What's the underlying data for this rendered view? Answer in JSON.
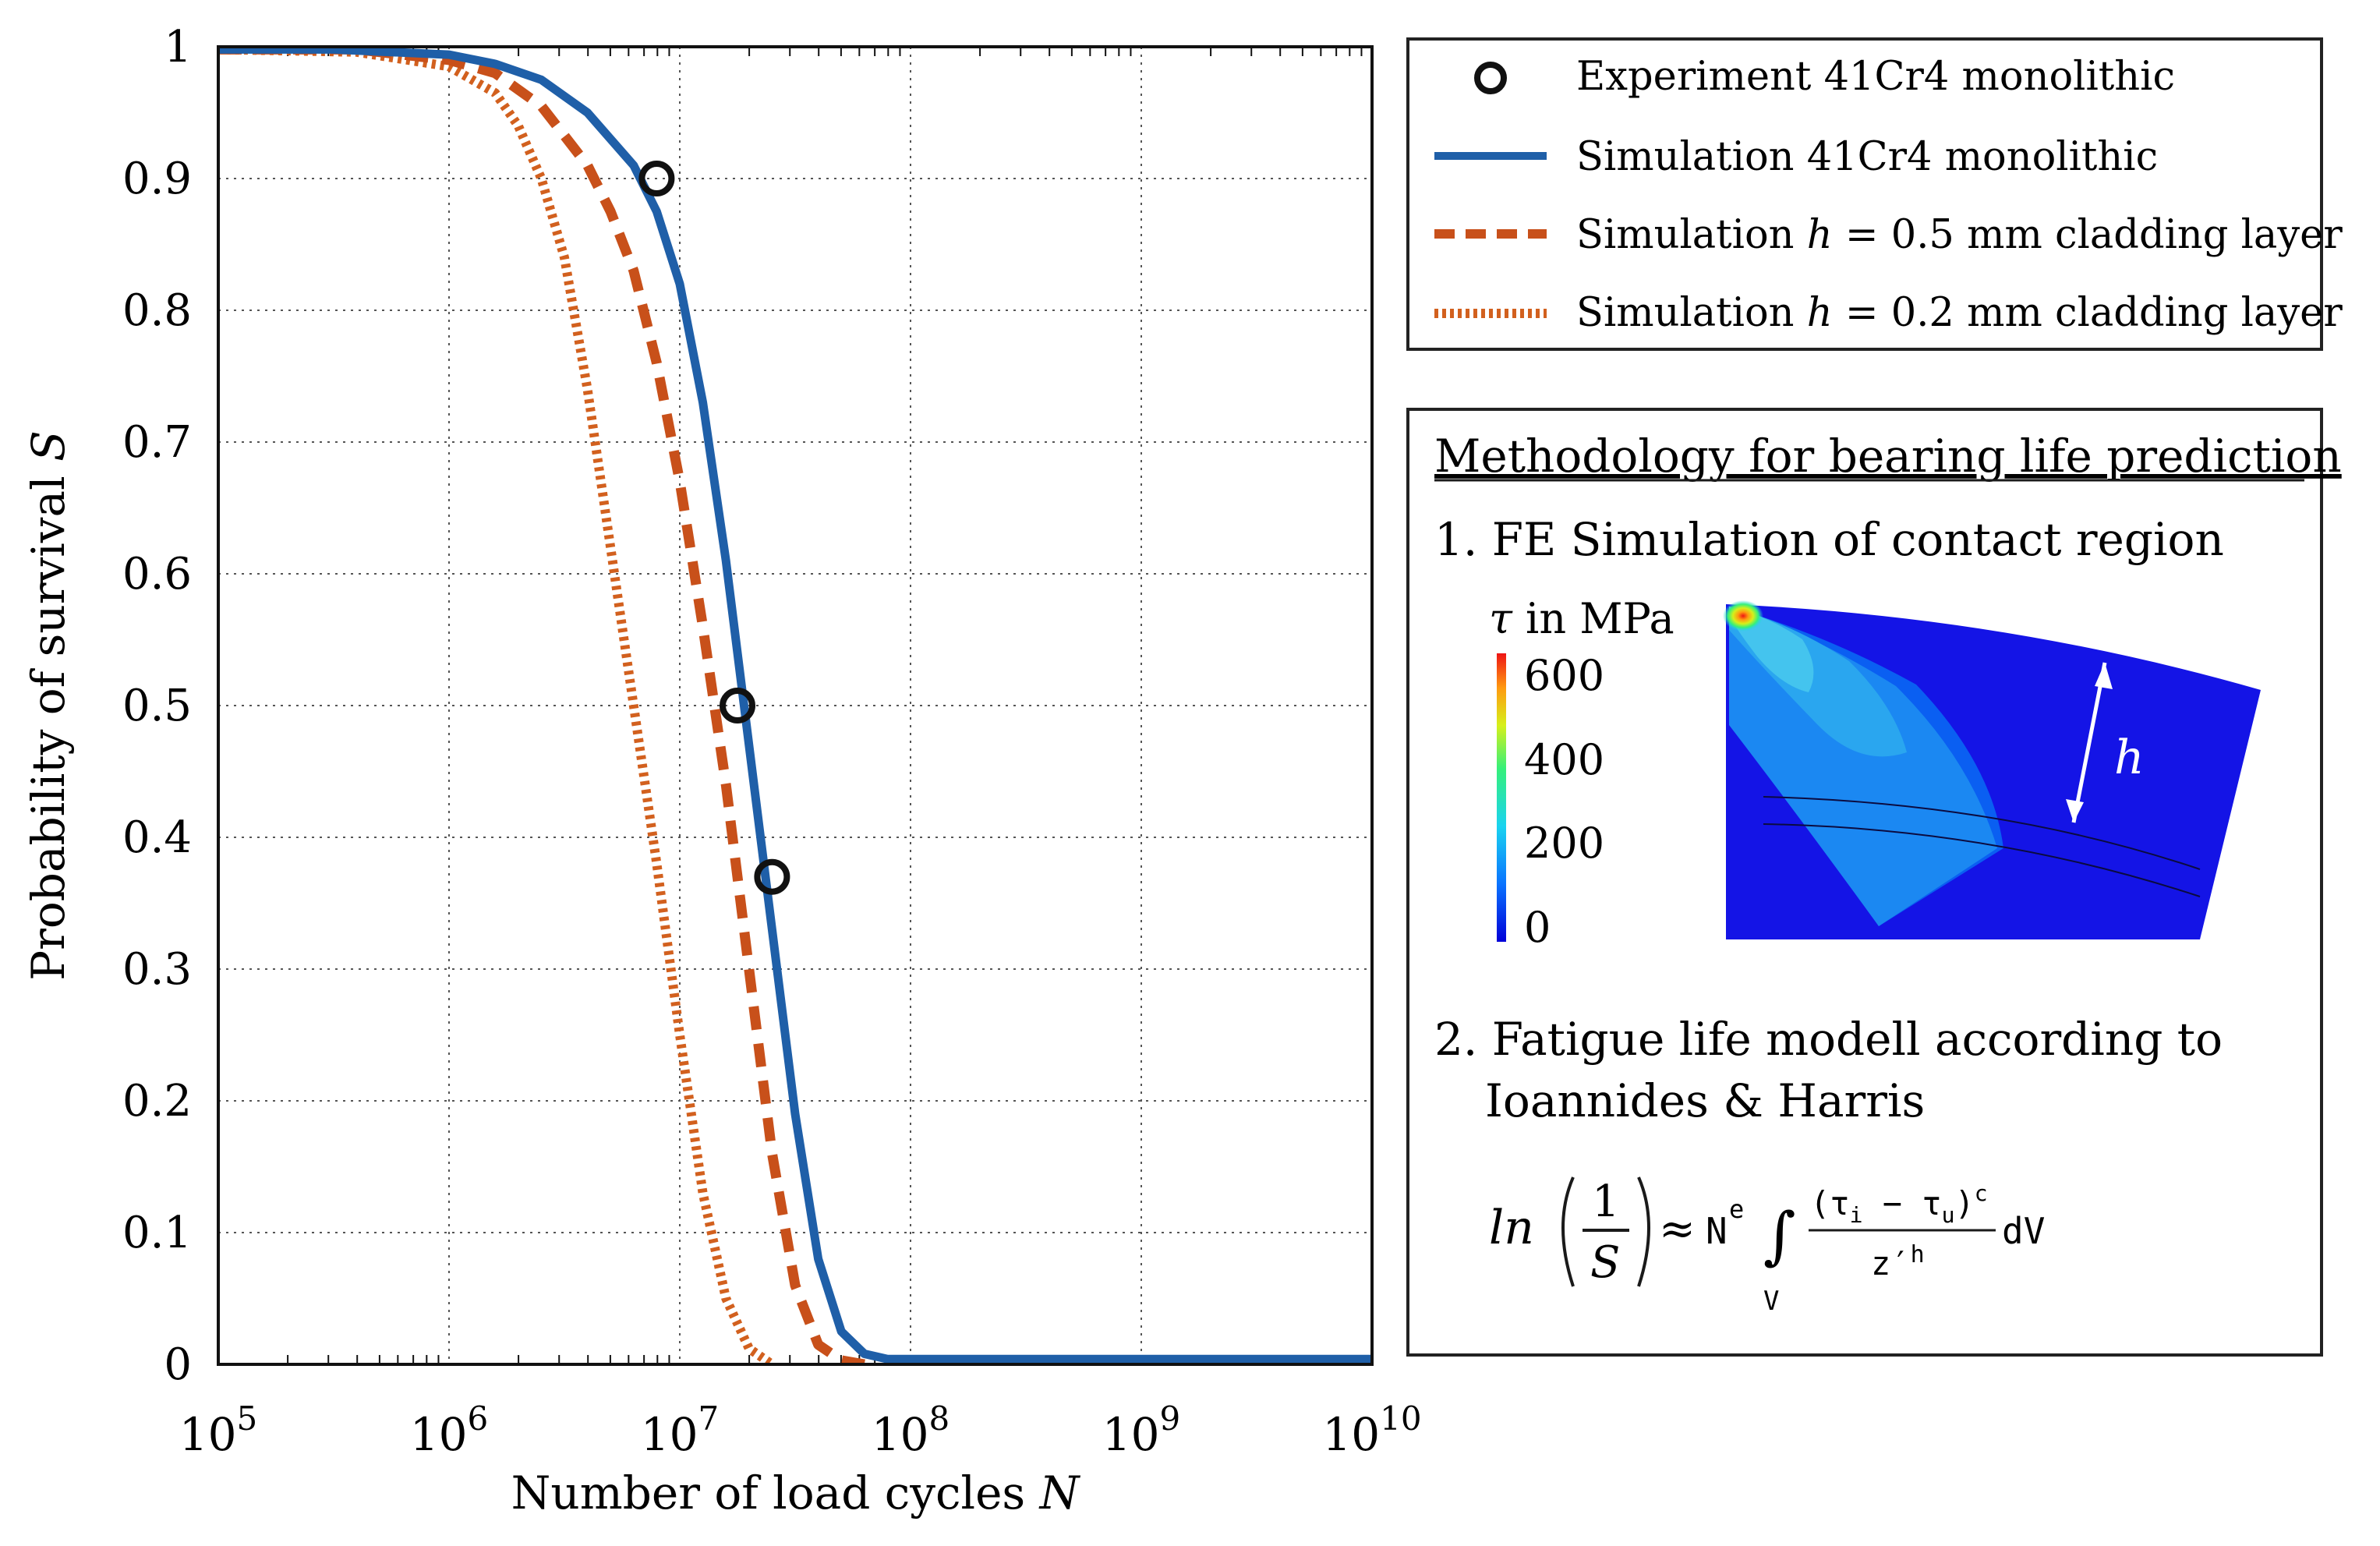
{
  "chart_data": {
    "type": "line",
    "xscale": "log",
    "xlim_log10": [
      5,
      10
    ],
    "ylim": [
      0,
      1
    ],
    "grid": true,
    "xlabel": "Number of load cycles",
    "xlabel_var": "N",
    "ylabel": "Probability of survival",
    "ylabel_var": "S",
    "x_tick_base": "10",
    "x_tick_exponents": [
      "5",
      "6",
      "7",
      "8",
      "9",
      "10"
    ],
    "y_ticks": [
      0,
      0.1,
      0.2,
      0.3,
      0.4,
      0.5,
      0.6,
      0.7,
      0.8,
      0.9,
      1
    ],
    "y_tick_labels": [
      "0",
      "0.1",
      "0.2",
      "0.3",
      "0.4",
      "0.5",
      "0.6",
      "0.7",
      "0.8",
      "0.9",
      "1"
    ],
    "series": [
      {
        "name": "Experiment 41Cr4 monolithic",
        "style": "markers",
        "color": "#111111",
        "points": [
          [
            6.9,
            0.9
          ],
          [
            7.25,
            0.5
          ],
          [
            7.4,
            0.37
          ]
        ]
      },
      {
        "name": "Simulation 41Cr4 monolithic",
        "style": "solid",
        "color": "#1f5fa8",
        "points": [
          [
            5.0,
            0.998
          ],
          [
            5.5,
            0.998
          ],
          [
            6.0,
            0.994
          ],
          [
            6.2,
            0.987
          ],
          [
            6.4,
            0.975
          ],
          [
            6.6,
            0.95
          ],
          [
            6.8,
            0.91
          ],
          [
            6.9,
            0.875
          ],
          [
            7.0,
            0.82
          ],
          [
            7.1,
            0.73
          ],
          [
            7.2,
            0.61
          ],
          [
            7.3,
            0.47
          ],
          [
            7.4,
            0.33
          ],
          [
            7.5,
            0.19
          ],
          [
            7.6,
            0.08
          ],
          [
            7.7,
            0.025
          ],
          [
            7.8,
            0.008
          ],
          [
            7.9,
            0.004
          ],
          [
            8.0,
            0.004
          ],
          [
            9.0,
            0.004
          ],
          [
            10.0,
            0.004
          ]
        ]
      },
      {
        "name": "Simulation h = 0.5 mm cladding layer",
        "name_prefix": "Simulation",
        "name_var": "h",
        "name_suffix": "= 0.5 mm cladding layer",
        "style": "dashed",
        "color": "#c8501a",
        "points": [
          [
            5.0,
            0.998
          ],
          [
            5.6,
            0.998
          ],
          [
            6.0,
            0.99
          ],
          [
            6.2,
            0.98
          ],
          [
            6.4,
            0.955
          ],
          [
            6.6,
            0.91
          ],
          [
            6.7,
            0.875
          ],
          [
            6.8,
            0.83
          ],
          [
            6.9,
            0.76
          ],
          [
            7.0,
            0.67
          ],
          [
            7.1,
            0.56
          ],
          [
            7.2,
            0.44
          ],
          [
            7.3,
            0.3
          ],
          [
            7.4,
            0.16
          ],
          [
            7.5,
            0.06
          ],
          [
            7.6,
            0.015
          ],
          [
            7.7,
            0.003
          ],
          [
            7.8,
            0.0
          ]
        ]
      },
      {
        "name": "Simulation h = 0.2 mm cladding layer",
        "name_prefix": "Simulation",
        "name_var": "h",
        "name_suffix": "= 0.2 mm cladding layer",
        "style": "dotted",
        "color": "#d2601e",
        "points": [
          [
            5.0,
            0.998
          ],
          [
            5.6,
            0.996
          ],
          [
            6.0,
            0.985
          ],
          [
            6.2,
            0.965
          ],
          [
            6.3,
            0.94
          ],
          [
            6.4,
            0.9
          ],
          [
            6.5,
            0.84
          ],
          [
            6.6,
            0.74
          ],
          [
            6.7,
            0.62
          ],
          [
            6.8,
            0.5
          ],
          [
            6.9,
            0.38
          ],
          [
            7.0,
            0.25
          ],
          [
            7.1,
            0.13
          ],
          [
            7.2,
            0.05
          ],
          [
            7.3,
            0.012
          ],
          [
            7.4,
            0.0
          ]
        ]
      }
    ],
    "legend_position": "right"
  },
  "methodology": {
    "title": "Methodology for bearing life prediction",
    "step1": "1. FE Simulation of contact region",
    "colorbar_symbol": "τ",
    "colorbar_unit": "in MPa",
    "colorbar_ticks": [
      "600",
      "400",
      "200",
      "0"
    ],
    "layer_label": "h",
    "step2_line1": "2. Fatigue life modell according to",
    "step2_line2": "Ioannides & Harris",
    "formula": {
      "ln": "ln",
      "num": "1",
      "den": "S",
      "approx": "≈",
      "N": "N",
      "e": "e",
      "integral": "∫",
      "V": "V",
      "frac_num": "(τ",
      "i": "i",
      "minus": " − τ",
      "u": "u",
      "close": ")",
      "c": "c",
      "frac_den": "z′",
      "h": "h",
      "dV": "dV"
    }
  },
  "colors": {
    "monolithic": "#1f5fa8",
    "clad05": "#c8501a",
    "clad02": "#d2601e",
    "fe_background": "#1414e6"
  }
}
